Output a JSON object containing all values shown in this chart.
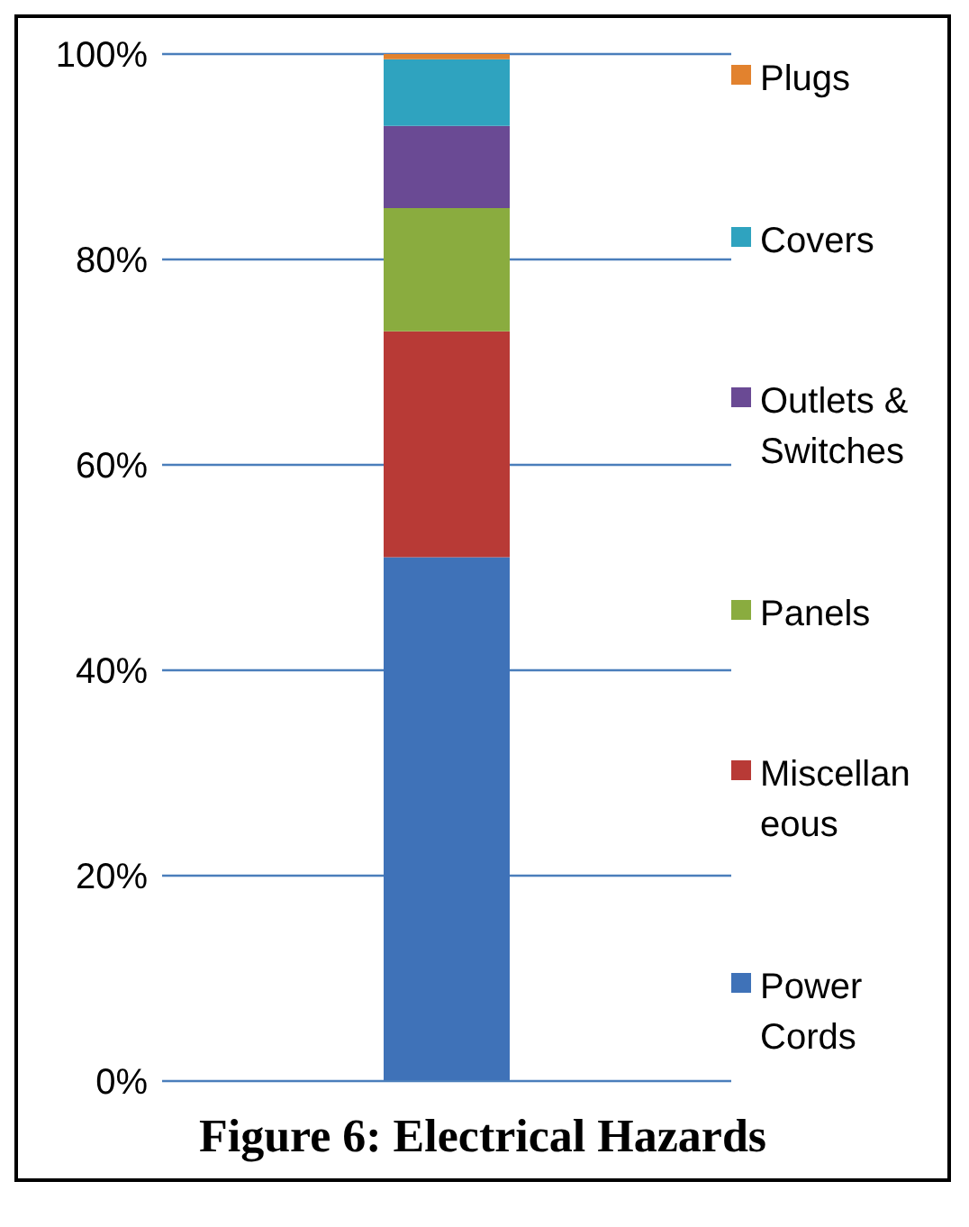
{
  "chart_data": {
    "type": "bar",
    "stacked": true,
    "title": "Figure 6: Electrical Hazards",
    "categories": [
      null
    ],
    "series": [
      {
        "name": "Power Cords",
        "color": "#3f72b8",
        "values": [
          51
        ]
      },
      {
        "name": "Miscellaneous",
        "color": "#b83a36",
        "values": [
          22
        ]
      },
      {
        "name": "Panels",
        "color": "#8aac3f",
        "values": [
          12
        ]
      },
      {
        "name": "Outlets & Switches",
        "color": "#6a4a94",
        "values": [
          8
        ]
      },
      {
        "name": "Covers",
        "color": "#2fa3bf",
        "values": [
          6.5
        ]
      },
      {
        "name": "Plugs",
        "color": "#e2822e",
        "values": [
          0.5
        ]
      }
    ],
    "ylim": [
      0,
      100
    ],
    "yticks": [
      {
        "value": 0,
        "label": "0%"
      },
      {
        "value": 20,
        "label": "20%"
      },
      {
        "value": 40,
        "label": "40%"
      },
      {
        "value": 60,
        "label": "60%"
      },
      {
        "value": 80,
        "label": "80%"
      },
      {
        "value": 100,
        "label": "100%"
      }
    ],
    "grid": "y",
    "legend": "right",
    "tick_labels": "y"
  }
}
